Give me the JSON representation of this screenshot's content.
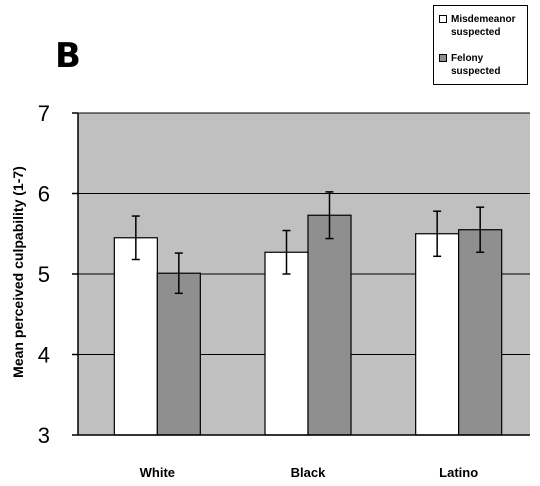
{
  "panel_label": "B",
  "legend": [
    {
      "label": "Misdemeanor\nsuspected",
      "color": "#ffffff"
    },
    {
      "label": "Felony\nsuspected",
      "color": "#8f8f8f"
    }
  ],
  "chart_data": {
    "type": "bar",
    "title": "",
    "xlabel": "",
    "ylabel": "Mean perceived culpability (1-7)",
    "ylim": [
      3,
      7
    ],
    "yticks": [
      3,
      4,
      5,
      6,
      7
    ],
    "grid": true,
    "legend_position": "top-right",
    "plot_background": "#c0c0c0",
    "categories": [
      "White",
      "Black",
      "Latino"
    ],
    "series": [
      {
        "name": "Misdemeanor suspected",
        "color": "#ffffff",
        "values": [
          5.45,
          5.27,
          5.5
        ],
        "errors": [
          0.27,
          0.27,
          0.28
        ]
      },
      {
        "name": "Felony suspected",
        "color": "#8f8f8f",
        "values": [
          5.01,
          5.73,
          5.55
        ],
        "errors": [
          0.25,
          0.29,
          0.28
        ]
      }
    ]
  }
}
